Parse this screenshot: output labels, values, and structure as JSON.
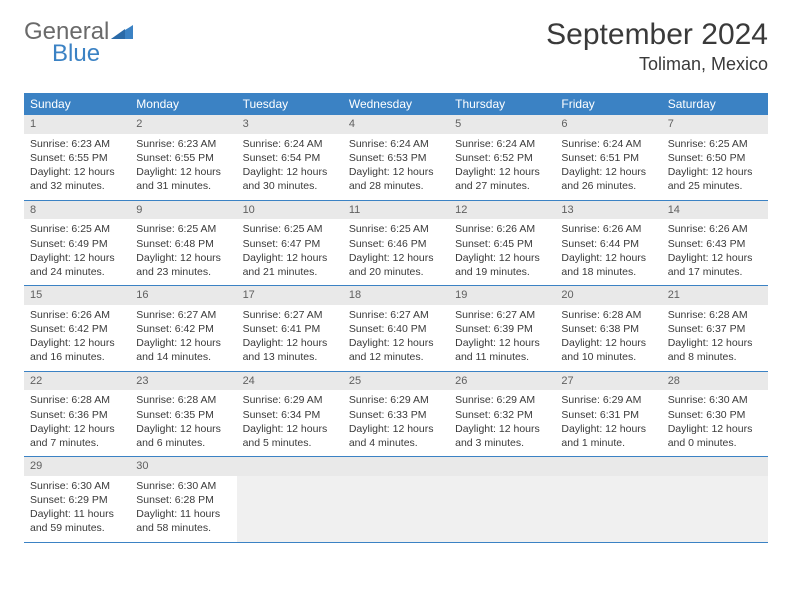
{
  "brand": {
    "part1": "General",
    "part2": "Blue"
  },
  "title": "September 2024",
  "location": "Toliman, Mexico",
  "colors": {
    "header_bg": "#3b82c4",
    "header_text": "#ffffff",
    "daynum_bg": "#e9e9e9",
    "body_text": "#3a3a3a",
    "page_bg": "#ffffff",
    "row_border": "#3b82c4"
  },
  "day_labels": [
    "Sunday",
    "Monday",
    "Tuesday",
    "Wednesday",
    "Thursday",
    "Friday",
    "Saturday"
  ],
  "weeks": [
    [
      {
        "n": "1",
        "sr": "Sunrise: 6:23 AM",
        "ss": "Sunset: 6:55 PM",
        "dl": "Daylight: 12 hours and 32 minutes."
      },
      {
        "n": "2",
        "sr": "Sunrise: 6:23 AM",
        "ss": "Sunset: 6:55 PM",
        "dl": "Daylight: 12 hours and 31 minutes."
      },
      {
        "n": "3",
        "sr": "Sunrise: 6:24 AM",
        "ss": "Sunset: 6:54 PM",
        "dl": "Daylight: 12 hours and 30 minutes."
      },
      {
        "n": "4",
        "sr": "Sunrise: 6:24 AM",
        "ss": "Sunset: 6:53 PM",
        "dl": "Daylight: 12 hours and 28 minutes."
      },
      {
        "n": "5",
        "sr": "Sunrise: 6:24 AM",
        "ss": "Sunset: 6:52 PM",
        "dl": "Daylight: 12 hours and 27 minutes."
      },
      {
        "n": "6",
        "sr": "Sunrise: 6:24 AM",
        "ss": "Sunset: 6:51 PM",
        "dl": "Daylight: 12 hours and 26 minutes."
      },
      {
        "n": "7",
        "sr": "Sunrise: 6:25 AM",
        "ss": "Sunset: 6:50 PM",
        "dl": "Daylight: 12 hours and 25 minutes."
      }
    ],
    [
      {
        "n": "8",
        "sr": "Sunrise: 6:25 AM",
        "ss": "Sunset: 6:49 PM",
        "dl": "Daylight: 12 hours and 24 minutes."
      },
      {
        "n": "9",
        "sr": "Sunrise: 6:25 AM",
        "ss": "Sunset: 6:48 PM",
        "dl": "Daylight: 12 hours and 23 minutes."
      },
      {
        "n": "10",
        "sr": "Sunrise: 6:25 AM",
        "ss": "Sunset: 6:47 PM",
        "dl": "Daylight: 12 hours and 21 minutes."
      },
      {
        "n": "11",
        "sr": "Sunrise: 6:25 AM",
        "ss": "Sunset: 6:46 PM",
        "dl": "Daylight: 12 hours and 20 minutes."
      },
      {
        "n": "12",
        "sr": "Sunrise: 6:26 AM",
        "ss": "Sunset: 6:45 PM",
        "dl": "Daylight: 12 hours and 19 minutes."
      },
      {
        "n": "13",
        "sr": "Sunrise: 6:26 AM",
        "ss": "Sunset: 6:44 PM",
        "dl": "Daylight: 12 hours and 18 minutes."
      },
      {
        "n": "14",
        "sr": "Sunrise: 6:26 AM",
        "ss": "Sunset: 6:43 PM",
        "dl": "Daylight: 12 hours and 17 minutes."
      }
    ],
    [
      {
        "n": "15",
        "sr": "Sunrise: 6:26 AM",
        "ss": "Sunset: 6:42 PM",
        "dl": "Daylight: 12 hours and 16 minutes."
      },
      {
        "n": "16",
        "sr": "Sunrise: 6:27 AM",
        "ss": "Sunset: 6:42 PM",
        "dl": "Daylight: 12 hours and 14 minutes."
      },
      {
        "n": "17",
        "sr": "Sunrise: 6:27 AM",
        "ss": "Sunset: 6:41 PM",
        "dl": "Daylight: 12 hours and 13 minutes."
      },
      {
        "n": "18",
        "sr": "Sunrise: 6:27 AM",
        "ss": "Sunset: 6:40 PM",
        "dl": "Daylight: 12 hours and 12 minutes."
      },
      {
        "n": "19",
        "sr": "Sunrise: 6:27 AM",
        "ss": "Sunset: 6:39 PM",
        "dl": "Daylight: 12 hours and 11 minutes."
      },
      {
        "n": "20",
        "sr": "Sunrise: 6:28 AM",
        "ss": "Sunset: 6:38 PM",
        "dl": "Daylight: 12 hours and 10 minutes."
      },
      {
        "n": "21",
        "sr": "Sunrise: 6:28 AM",
        "ss": "Sunset: 6:37 PM",
        "dl": "Daylight: 12 hours and 8 minutes."
      }
    ],
    [
      {
        "n": "22",
        "sr": "Sunrise: 6:28 AM",
        "ss": "Sunset: 6:36 PM",
        "dl": "Daylight: 12 hours and 7 minutes."
      },
      {
        "n": "23",
        "sr": "Sunrise: 6:28 AM",
        "ss": "Sunset: 6:35 PM",
        "dl": "Daylight: 12 hours and 6 minutes."
      },
      {
        "n": "24",
        "sr": "Sunrise: 6:29 AM",
        "ss": "Sunset: 6:34 PM",
        "dl": "Daylight: 12 hours and 5 minutes."
      },
      {
        "n": "25",
        "sr": "Sunrise: 6:29 AM",
        "ss": "Sunset: 6:33 PM",
        "dl": "Daylight: 12 hours and 4 minutes."
      },
      {
        "n": "26",
        "sr": "Sunrise: 6:29 AM",
        "ss": "Sunset: 6:32 PM",
        "dl": "Daylight: 12 hours and 3 minutes."
      },
      {
        "n": "27",
        "sr": "Sunrise: 6:29 AM",
        "ss": "Sunset: 6:31 PM",
        "dl": "Daylight: 12 hours and 1 minute."
      },
      {
        "n": "28",
        "sr": "Sunrise: 6:30 AM",
        "ss": "Sunset: 6:30 PM",
        "dl": "Daylight: 12 hours and 0 minutes."
      }
    ],
    [
      {
        "n": "29",
        "sr": "Sunrise: 6:30 AM",
        "ss": "Sunset: 6:29 PM",
        "dl": "Daylight: 11 hours and 59 minutes."
      },
      {
        "n": "30",
        "sr": "Sunrise: 6:30 AM",
        "ss": "Sunset: 6:28 PM",
        "dl": "Daylight: 11 hours and 58 minutes."
      },
      null,
      null,
      null,
      null,
      null
    ]
  ]
}
